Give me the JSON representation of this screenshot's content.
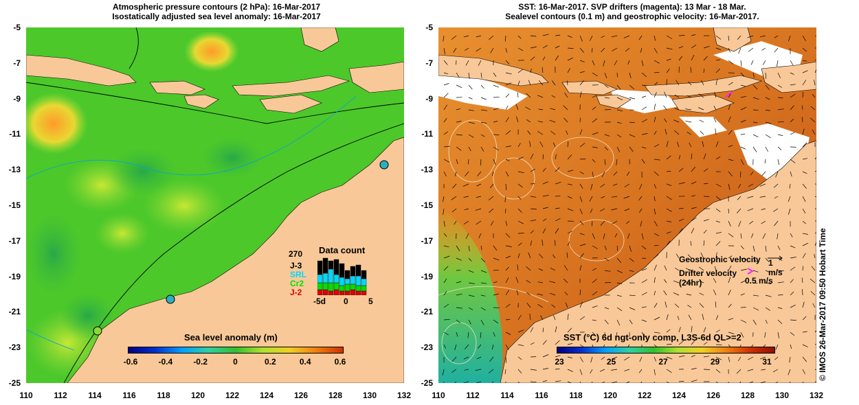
{
  "left_panel": {
    "title_line1": "Atmospheric pressure contours (2 hPa): 16-Mar-2017",
    "title_line2": "Isostatically adjusted sea level anomaly: 16-Mar-2017",
    "colorbar_title": "Sea level anomaly (m)",
    "colorbar_ticks": [
      "-0.6",
      "-0.4",
      "-0.2",
      "0",
      "0.2",
      "0.4",
      "0.6"
    ],
    "inset": {
      "title": "Data count",
      "max_label": "270",
      "missions": [
        {
          "label": "J-3",
          "color": "#000000"
        },
        {
          "label": "SRL",
          "color": "#00d8ff"
        },
        {
          "label": "Cr2",
          "color": "#00e000"
        },
        {
          "label": "J-2",
          "color": "#e00000"
        }
      ],
      "x_ticks": [
        "-5d",
        "0",
        "5"
      ]
    }
  },
  "right_panel": {
    "title_line1": "SST: 16-Mar-2017. SVP drifters (magenta): 13 Mar - 18 Mar.",
    "title_line2": "Sealevel contours (0.1 m) and geostrophic velocity: 16-Mar-2017.",
    "geostrophic_label": "Geostrophic velocity",
    "geostrophic_scale": "1 m/s",
    "drifter_label_line1": "Drifter velocity",
    "drifter_label_line2": "(24hr)",
    "drifter_scale": "0.5 m/s",
    "colorbar_title": "SST (°C) 6d ngt-only comp, L3S-6d QL>=2",
    "colorbar_ticks": [
      "23",
      "25",
      "27",
      "29",
      "31"
    ]
  },
  "x_ticks": [
    "110",
    "112",
    "114",
    "116",
    "118",
    "120",
    "122",
    "124",
    "126",
    "128",
    "130",
    "132"
  ],
  "y_ticks": [
    "-5",
    "-7",
    "-9",
    "-11",
    "-13",
    "-15",
    "-17",
    "-19",
    "-21",
    "-23",
    "-25"
  ],
  "credit": "© IMOS 26-Mar-2017 09:50 Hobart Time",
  "colors": {
    "land": "#f8c898",
    "sla_ocean": "#4cc82a",
    "sst_ocean": "#dc7a1e"
  }
}
